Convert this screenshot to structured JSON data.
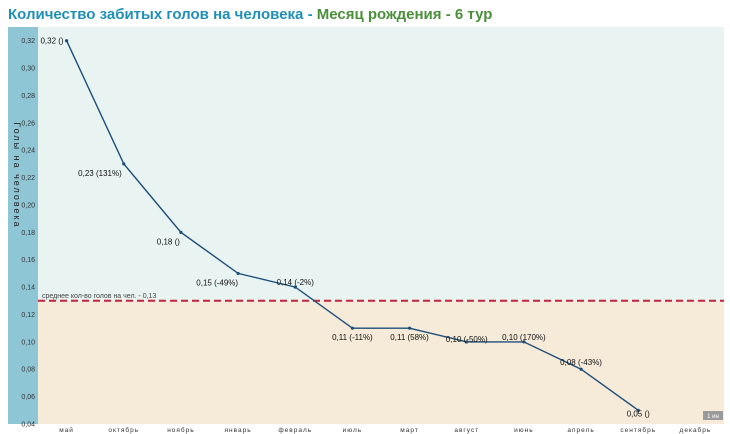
{
  "title": {
    "part1": "Количество забитых голов на человека",
    "separator": " - ",
    "part2": "Месяц рождения - 6 тур"
  },
  "colors": {
    "above_band": "#e8f3f2",
    "below_band": "#f6ead8",
    "axis_band": "#8fc6d6",
    "line": "#1d4e7a",
    "avg_line": "#c0253c"
  },
  "badge": "1 ин",
  "chart_data": {
    "type": "line",
    "title": "Количество забитых голов на человека - Месяц рождения - 6 тур",
    "xlabel": "",
    "ylabel": "Голы на человека",
    "ylim": [
      0.04,
      0.33
    ],
    "y_ticks": [
      0.04,
      0.06,
      0.08,
      0.1,
      0.12,
      0.14,
      0.16,
      0.18,
      0.2,
      0.22,
      0.24,
      0.26,
      0.28,
      0.3,
      0.32
    ],
    "categories": [
      "май",
      "октябрь",
      "ноябрь",
      "январь",
      "февраль",
      "июль",
      "март",
      "август",
      "июнь",
      "апрель",
      "сентябрь",
      "декабрь"
    ],
    "series": [
      {
        "values": [
          0.32,
          0.23,
          0.18,
          0.15,
          0.14,
          0.11,
          0.11,
          0.1,
          0.1,
          0.08,
          0.05,
          null
        ],
        "labels": [
          "0,32 ()",
          "0,23 (131%)",
          "0,18 ()",
          "0,15 (-49%)",
          "0,14 (-2%)",
          "0,11 (-11%)",
          "0,11 (58%)",
          "0,10 (-50%)",
          "0,10 (170%)",
          "0,08 (-43%)",
          "0,05 ()",
          ""
        ]
      }
    ],
    "reference_line": {
      "value": 0.13,
      "label": "среднее кол-во голов на чел. - 0,13"
    },
    "grid": false,
    "legend": "none"
  }
}
